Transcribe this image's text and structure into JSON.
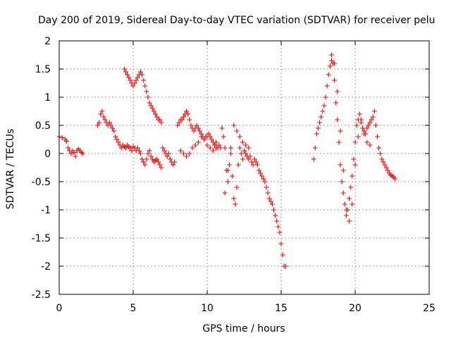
{
  "chart_data": {
    "type": "scatter",
    "title": "Day 200 of 2019, Sidereal Day-to-day VTEC variation (SDTVAR) for receiver pelu",
    "xlabel": "GPS time / hours",
    "ylabel": "SDTVAR / TECUs",
    "xlim": [
      0,
      25
    ],
    "ylim": [
      -2.5,
      2
    ],
    "xticks": [
      0,
      5,
      10,
      15,
      20,
      25
    ],
    "yticks": [
      2,
      1.5,
      1,
      0.5,
      0,
      -0.5,
      -1,
      -1.5,
      -2,
      -2.5
    ],
    "xtick_labels": [
      "0",
      "5",
      "10",
      "15",
      "20",
      "25"
    ],
    "ytick_labels": [
      "2",
      "1.5",
      "1",
      "0.5",
      "0",
      "-0.5",
      "-1",
      "-1.5",
      "-2",
      "-2.5"
    ],
    "grid": true,
    "marker": "+",
    "color": "#ff0000",
    "series": [
      {
        "name": "SDTVAR",
        "x": [
          0.0,
          0.2,
          0.4,
          0.5,
          0.6,
          0.7,
          0.8,
          0.9,
          1.0,
          1.1,
          1.2,
          1.3,
          1.4,
          1.5,
          1.6,
          2.6,
          2.7,
          2.8,
          2.9,
          3.0,
          3.1,
          3.2,
          3.3,
          3.4,
          3.5,
          3.6,
          3.7,
          3.8,
          3.9,
          4.0,
          4.1,
          4.2,
          4.3,
          4.4,
          4.5,
          4.6,
          4.7,
          4.8,
          4.9,
          5.0,
          5.1,
          5.2,
          5.3,
          5.4,
          5.5,
          5.6,
          5.7,
          5.8,
          5.9,
          6.0,
          6.1,
          6.2,
          6.3,
          6.4,
          6.5,
          6.6,
          6.7,
          6.8,
          6.9,
          4.4,
          4.5,
          4.6,
          4.7,
          4.8,
          4.9,
          5.0,
          5.1,
          5.2,
          5.3,
          5.4,
          5.5,
          5.6,
          5.7,
          5.8,
          5.9,
          6.0,
          6.1,
          6.2,
          6.3,
          6.4,
          6.5,
          6.6,
          6.7,
          6.8,
          6.9,
          7.0,
          7.1,
          7.2,
          7.3,
          7.4,
          7.5,
          7.6,
          7.7,
          7.8,
          8.0,
          8.1,
          8.2,
          8.3,
          8.4,
          8.5,
          8.6,
          8.7,
          8.8,
          8.9,
          9.0,
          9.1,
          9.2,
          9.3,
          9.4,
          9.5,
          9.6,
          9.7,
          9.8,
          9.9,
          10.0,
          10.1,
          10.2,
          10.3,
          10.4,
          10.5,
          10.6,
          10.7,
          10.8,
          10.9,
          8.2,
          8.4,
          8.6,
          8.8,
          9.0,
          9.2,
          9.4,
          9.6,
          9.8,
          10.0,
          10.2,
          10.4,
          10.6,
          11.0,
          11.1,
          11.2,
          11.3,
          11.4,
          11.5,
          11.6,
          11.7,
          11.8,
          11.9,
          12.0,
          12.1,
          12.2,
          12.3,
          12.4,
          12.5,
          12.6,
          12.7,
          12.8,
          12.9,
          13.0,
          13.1,
          13.2,
          13.3,
          13.4,
          13.5,
          13.6,
          13.7,
          13.8,
          13.9,
          14.0,
          14.1,
          14.2,
          14.3,
          14.4,
          14.5,
          14.6,
          14.7,
          14.8,
          14.9,
          15.0,
          15.1,
          15.2,
          15.3,
          11.2,
          11.4,
          11.6,
          11.8,
          12.0,
          12.2,
          12.4,
          12.6,
          12.8,
          17.2,
          17.3,
          17.4,
          17.5,
          17.6,
          17.7,
          17.8,
          17.9,
          18.0,
          18.1,
          18.2,
          18.3,
          18.4,
          18.5,
          18.6,
          18.7,
          18.8,
          18.9,
          19.0,
          19.1,
          19.2,
          19.3,
          19.4,
          19.5,
          19.6,
          19.7,
          19.8,
          19.9,
          20.0,
          20.1,
          20.2,
          20.3,
          20.4,
          20.5,
          20.6,
          20.7,
          20.8,
          20.9,
          21.0,
          21.1,
          21.2,
          21.3,
          21.4,
          21.5,
          21.6,
          21.7,
          21.8,
          21.9,
          22.0,
          22.1,
          22.2,
          22.3,
          22.4,
          22.5,
          22.6,
          22.7,
          18.4,
          18.6,
          18.8,
          19.0,
          19.2,
          19.4,
          19.6,
          19.8,
          20.0,
          20.2,
          20.4,
          20.6,
          20.8,
          21.0
        ],
        "y": [
          0.3,
          0.28,
          0.25,
          0.22,
          0.1,
          0.05,
          0.0,
          0.05,
          0.02,
          -0.05,
          0.05,
          0.08,
          0.05,
          0.02,
          0.0,
          0.5,
          0.55,
          0.7,
          0.75,
          0.65,
          0.6,
          0.55,
          0.5,
          0.55,
          0.5,
          0.45,
          0.4,
          0.3,
          0.25,
          0.2,
          0.15,
          0.1,
          0.15,
          0.12,
          0.1,
          0.15,
          0.12,
          0.1,
          0.05,
          0.12,
          0.1,
          0.05,
          0.1,
          0.05,
          0.0,
          -0.1,
          -0.15,
          -0.2,
          -0.1,
          0.0,
          0.05,
          -0.05,
          -0.1,
          -0.15,
          -0.12,
          -0.1,
          -0.15,
          -0.2,
          -0.25,
          1.5,
          1.45,
          1.4,
          1.35,
          1.3,
          1.25,
          1.2,
          1.25,
          1.3,
          1.35,
          1.4,
          1.45,
          1.4,
          1.3,
          1.2,
          1.1,
          1.0,
          0.9,
          0.85,
          0.8,
          0.75,
          0.7,
          0.65,
          0.6,
          0.6,
          0.55,
          0.1,
          0.05,
          0.0,
          -0.05,
          0.0,
          -0.1,
          -0.15,
          -0.2,
          -0.15,
          0.5,
          0.55,
          0.6,
          0.6,
          0.65,
          0.7,
          0.75,
          0.7,
          0.6,
          0.5,
          0.45,
          0.4,
          0.45,
          0.5,
          0.45,
          0.4,
          0.35,
          0.3,
          0.25,
          0.3,
          0.3,
          0.35,
          0.3,
          0.25,
          0.2,
          0.15,
          0.2,
          0.1,
          0.15,
          0.1,
          0.05,
          0.0,
          -0.05,
          0.0,
          0.1,
          0.15,
          0.2,
          0.3,
          0.25,
          0.15,
          0.1,
          0.05,
          0.1,
          0.45,
          0.3,
          0.1,
          -0.3,
          -0.5,
          -0.2,
          0.0,
          -0.4,
          -0.8,
          -0.9,
          -0.6,
          -0.2,
          0.1,
          0.0,
          -0.1,
          0.05,
          0.0,
          -0.05,
          -0.1,
          -0.05,
          -0.15,
          -0.2,
          -0.1,
          -0.15,
          -0.2,
          -0.3,
          -0.35,
          -0.4,
          -0.45,
          -0.5,
          -0.6,
          -0.7,
          -0.8,
          -0.85,
          -0.9,
          -1.0,
          -1.1,
          -1.2,
          -1.3,
          -1.4,
          -1.6,
          -1.8,
          -2.0,
          -2.0,
          -0.7,
          -0.3,
          0.1,
          0.5,
          0.4,
          0.3,
          0.2,
          0.15,
          0.1,
          -0.1,
          0.1,
          0.35,
          0.45,
          0.55,
          0.65,
          0.75,
          0.85,
          1.0,
          1.2,
          1.4,
          1.55,
          1.65,
          1.6,
          1.3,
          0.9,
          0.6,
          0.2,
          -0.2,
          -0.5,
          -0.7,
          -0.9,
          -1.1,
          -1.0,
          -0.8,
          -0.6,
          -0.4,
          -0.1,
          0.2,
          0.5,
          0.6,
          0.7,
          0.55,
          0.45,
          0.4,
          0.35,
          0.45,
          0.5,
          0.55,
          0.6,
          0.65,
          0.75,
          0.5,
          0.3,
          0.1,
          0.0,
          -0.1,
          -0.15,
          -0.2,
          -0.25,
          -0.3,
          -0.35,
          -0.38,
          -0.4,
          -0.42,
          -0.45,
          1.75,
          1.6,
          1.1,
          0.4,
          -0.3,
          -1.0,
          -1.2,
          -0.9,
          -0.2,
          0.3,
          0.6,
          0.35,
          0.2,
          0.15
        ]
      }
    ]
  }
}
